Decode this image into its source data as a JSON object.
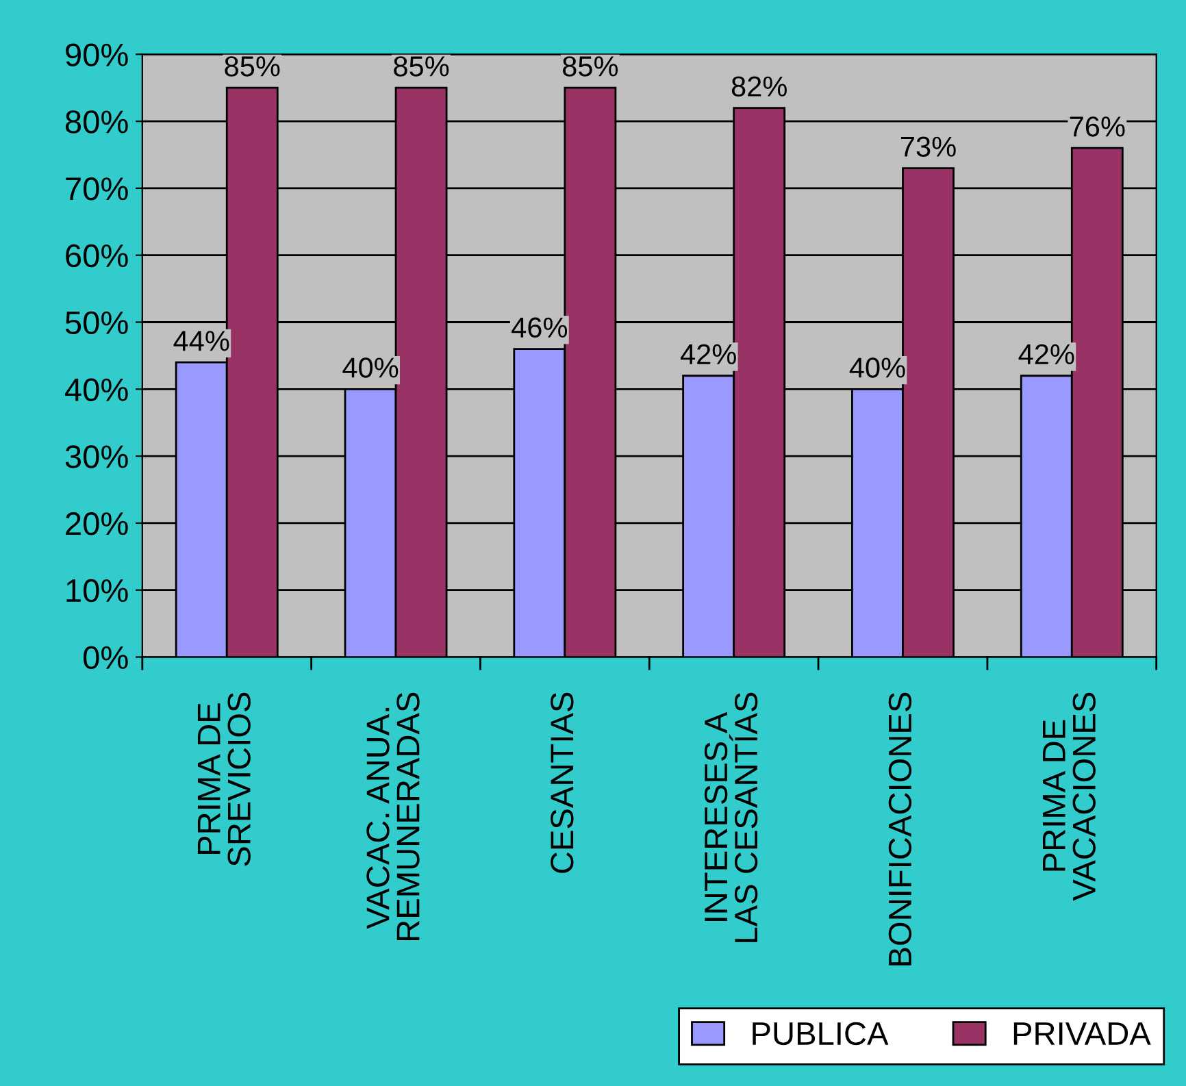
{
  "chart_data": {
    "type": "bar",
    "categories": [
      "PRIMA DE\nSREVICIOS",
      "VACAC. ANUA.\nREMUNERADAS",
      "CESANTIAS",
      "INTERESES A\nLAS CESANTÍAS",
      "BONIFICACIONES",
      "PRIMA DE\nVACACIONES"
    ],
    "series": [
      {
        "name": "PUBLICA",
        "color": "#9999ff",
        "values": [
          44,
          40,
          46,
          42,
          40,
          42
        ],
        "value_labels": [
          "44%",
          "40%",
          "46%",
          "42%",
          "40%",
          "42%"
        ]
      },
      {
        "name": "PRIVADA",
        "color": "#993366",
        "values": [
          85,
          85,
          85,
          82,
          73,
          76
        ],
        "value_labels": [
          "85%",
          "85%",
          "85%",
          "82%",
          "73%",
          "76%"
        ]
      }
    ],
    "ylim": [
      0,
      90
    ],
    "yticks": [
      {
        "value": 0,
        "label": "0%"
      },
      {
        "value": 10,
        "label": "10%"
      },
      {
        "value": 20,
        "label": "20%"
      },
      {
        "value": 30,
        "label": "30%"
      },
      {
        "value": 40,
        "label": "40%"
      },
      {
        "value": 50,
        "label": "50%"
      },
      {
        "value": 60,
        "label": "60%"
      },
      {
        "value": 70,
        "label": "70%"
      },
      {
        "value": 80,
        "label": "80%"
      },
      {
        "value": 90,
        "label": "90%"
      }
    ],
    "grid": "y",
    "legend": "bottom right"
  }
}
